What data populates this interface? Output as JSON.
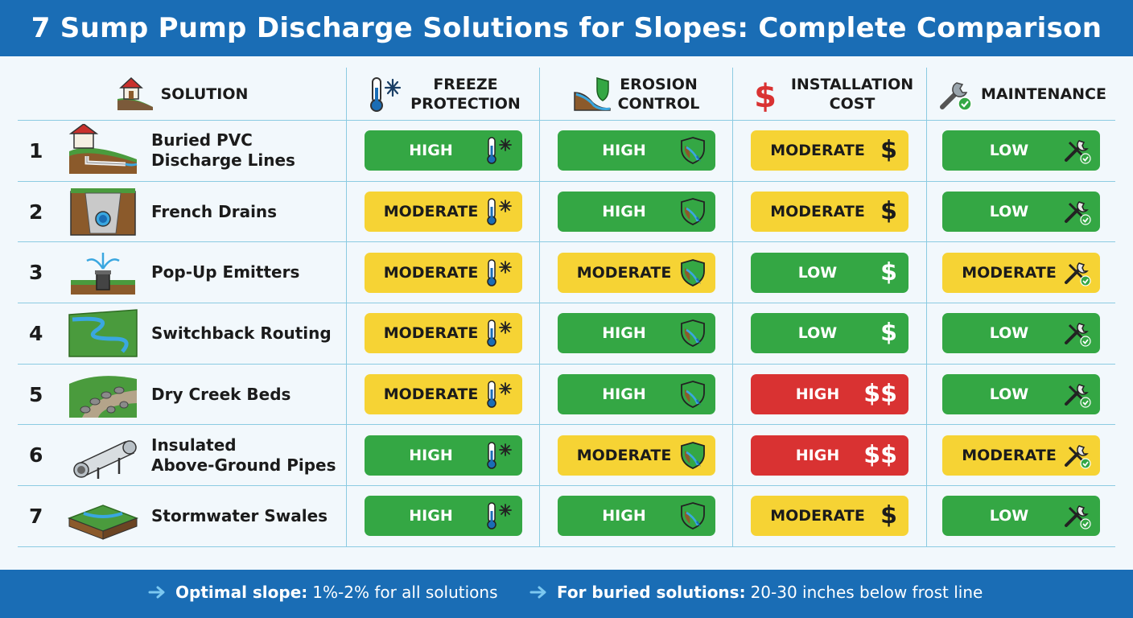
{
  "title": "7 Sump Pump Discharge Solutions for Slopes: Complete Comparison",
  "columns": {
    "solution": "SOLUTION",
    "freeze": [
      "FREEZE",
      "PROTECTION"
    ],
    "erosion": [
      "EROSION",
      "CONTROL"
    ],
    "cost": [
      "INSTALLATION",
      "COST"
    ],
    "maintenance": "MAINTENANCE"
  },
  "rows": [
    {
      "num": "1",
      "name": [
        "Buried PVC",
        "Discharge Lines"
      ],
      "icon": "buried-pvc-icon",
      "freeze": "HIGH",
      "erosion": "HIGH",
      "cost": "MODERATE",
      "cost_symbol": "$",
      "maintenance": "LOW"
    },
    {
      "num": "2",
      "name": [
        "French Drains"
      ],
      "icon": "french-drain-icon",
      "freeze": "MODERATE",
      "erosion": "HIGH",
      "cost": "MODERATE",
      "cost_symbol": "$",
      "maintenance": "LOW"
    },
    {
      "num": "3",
      "name": [
        "Pop-Up Emitters"
      ],
      "icon": "pop-up-emitter-icon",
      "freeze": "MODERATE",
      "erosion": "MODERATE",
      "cost": "LOW",
      "cost_symbol": "$",
      "maintenance": "MODERATE"
    },
    {
      "num": "4",
      "name": [
        "Switchback Routing"
      ],
      "icon": "switchback-routing-icon",
      "freeze": "MODERATE",
      "erosion": "HIGH",
      "cost": "LOW",
      "cost_symbol": "$",
      "maintenance": "LOW"
    },
    {
      "num": "5",
      "name": [
        "Dry Creek Beds"
      ],
      "icon": "dry-creek-bed-icon",
      "freeze": "MODERATE",
      "erosion": "HIGH",
      "cost": "HIGH",
      "cost_symbol": "$$",
      "maintenance": "LOW"
    },
    {
      "num": "6",
      "name": [
        "Insulated",
        "Above-Ground Pipes"
      ],
      "icon": "insulated-pipe-icon",
      "freeze": "HIGH",
      "erosion": "MODERATE",
      "cost": "HIGH",
      "cost_symbol": "$$",
      "maintenance": "MODERATE"
    },
    {
      "num": "7",
      "name": [
        "Stormwater Swales"
      ],
      "icon": "stormwater-swale-icon",
      "freeze": "HIGH",
      "erosion": "HIGH",
      "cost": "MODERATE",
      "cost_symbol": "$",
      "maintenance": "LOW"
    }
  ],
  "footer": [
    {
      "label": "Optimal slope:",
      "text": "1%-2% for all solutions"
    },
    {
      "label": "For buried solutions:",
      "text": "20-30 inches below frost line"
    }
  ],
  "colors": {
    "header_blue": "#1a6db5",
    "high_favorable": "#34a744",
    "moderate": "#f6d334",
    "high_cost": "#d93232",
    "grid_line": "#8ccbe2"
  }
}
